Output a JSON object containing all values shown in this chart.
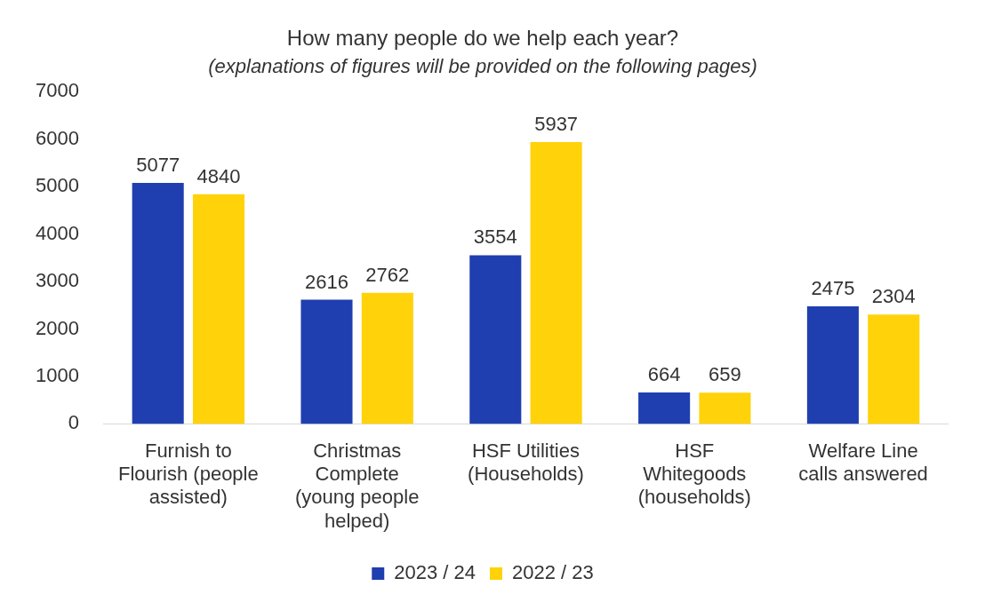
{
  "chart_data": {
    "type": "bar",
    "title": "How many people do we help each year?",
    "subtitle": "(explanations of figures will be provided on the following pages)",
    "categories": [
      "Furnish to Flourish (people assisted)",
      "Christmas Complete (young people helped)",
      "HSF Utilities (Households)",
      "HSF Whitegoods (households)",
      "Welfare Line calls answered"
    ],
    "series": [
      {
        "name": "2023 / 24",
        "color": "#1f3fb0",
        "values": [
          5077,
          2616,
          3554,
          664,
          2475
        ]
      },
      {
        "name": "2022 / 23",
        "color": "#ffd20a",
        "values": [
          4840,
          2762,
          5937,
          659,
          2304
        ]
      }
    ],
    "ylim": [
      0,
      7000
    ],
    "yticks": [
      0,
      1000,
      2000,
      3000,
      4000,
      5000,
      6000,
      7000
    ],
    "grid": false,
    "legend": "bottom",
    "data_labels": true
  }
}
